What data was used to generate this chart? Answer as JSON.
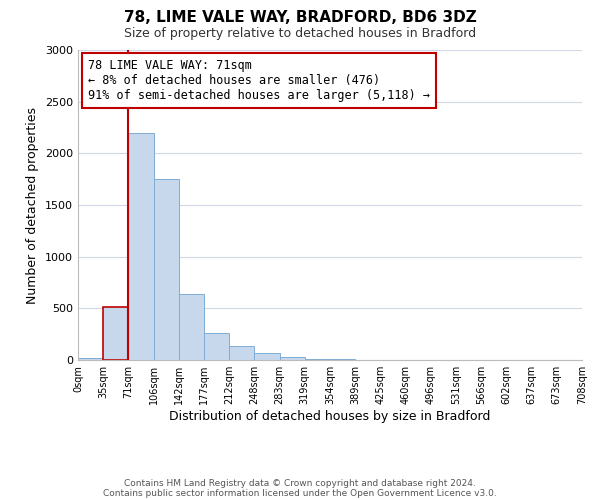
{
  "title": "78, LIME VALE WAY, BRADFORD, BD6 3DZ",
  "subtitle": "Size of property relative to detached houses in Bradford",
  "xlabel": "Distribution of detached houses by size in Bradford",
  "ylabel": "Number of detached properties",
  "footer_lines": [
    "Contains HM Land Registry data © Crown copyright and database right 2024.",
    "Contains public sector information licensed under the Open Government Licence v3.0."
  ],
  "bin_labels": [
    "0sqm",
    "35sqm",
    "71sqm",
    "106sqm",
    "142sqm",
    "177sqm",
    "212sqm",
    "248sqm",
    "283sqm",
    "319sqm",
    "354sqm",
    "389sqm",
    "425sqm",
    "460sqm",
    "496sqm",
    "531sqm",
    "566sqm",
    "602sqm",
    "637sqm",
    "673sqm",
    "708sqm"
  ],
  "bar_heights": [
    20,
    510,
    2200,
    1750,
    635,
    260,
    135,
    70,
    25,
    10,
    5,
    2,
    1,
    0,
    0,
    0,
    0,
    0,
    0,
    0
  ],
  "bar_color": "#c8d8ec",
  "bar_edge_color": "#7eadd4",
  "highlight_bar_index": 1,
  "highlight_color": "#c00000",
  "ylim": [
    0,
    3000
  ],
  "yticks": [
    0,
    500,
    1000,
    1500,
    2000,
    2500,
    3000
  ],
  "property_line_x": 2,
  "annotation_title": "78 LIME VALE WAY: 71sqm",
  "annotation_line1": "← 8% of detached houses are smaller (476)",
  "annotation_line2": "91% of semi-detached houses are larger (5,118) →",
  "background_color": "#ffffff",
  "grid_color": "#d0d8e8"
}
